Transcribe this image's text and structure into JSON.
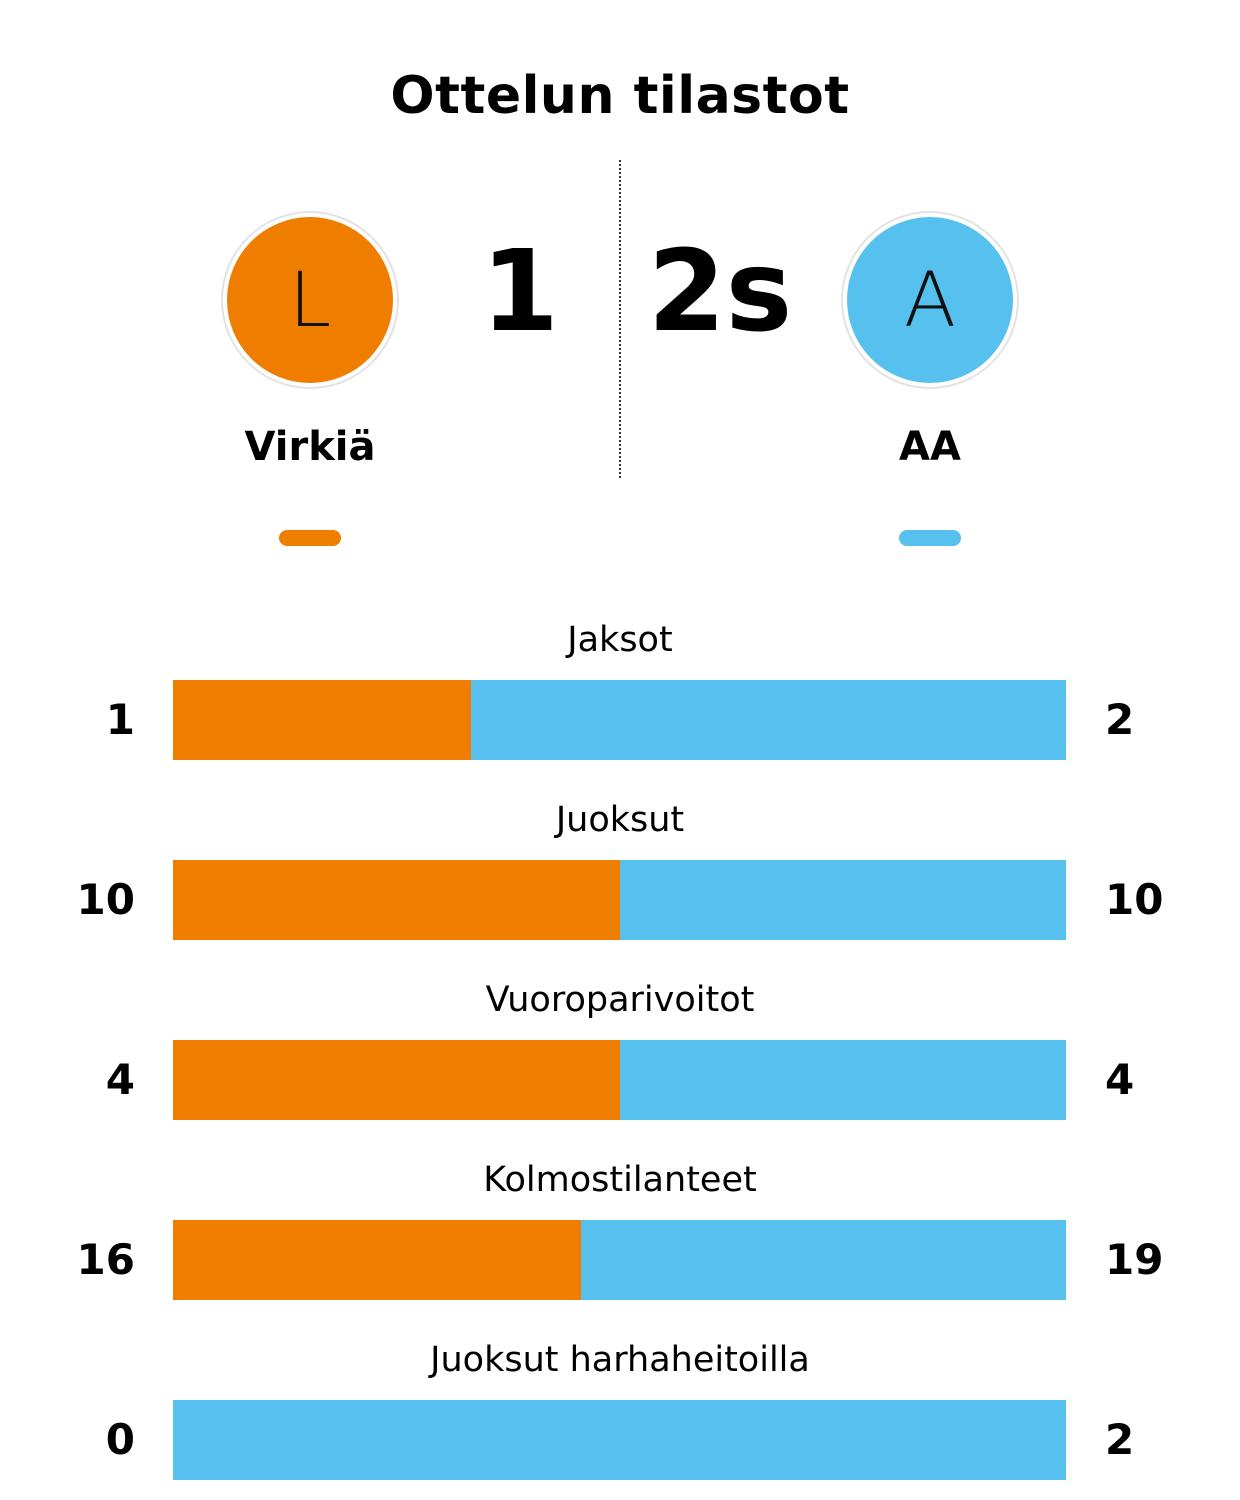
{
  "title": "Ottelun tilastot",
  "colors": {
    "home": "#ef7d00",
    "away": "#56c1ef"
  },
  "teams": {
    "home": {
      "initial": "L",
      "name": "Virkiä",
      "score": "1"
    },
    "away": {
      "initial": "A",
      "name": "AA",
      "score": "2s"
    }
  },
  "chart_data": {
    "type": "bar",
    "orientation": "horizontal-stacked",
    "categories": [
      "Jaksot",
      "Juoksut",
      "Vuoroparivoitot",
      "Kolmostilanteet",
      "Juoksut harhaheitoilla"
    ],
    "series": [
      {
        "name": "Virkiä",
        "values": [
          1,
          10,
          4,
          16,
          0
        ]
      },
      {
        "name": "AA",
        "values": [
          2,
          10,
          4,
          19,
          2
        ]
      }
    ]
  }
}
